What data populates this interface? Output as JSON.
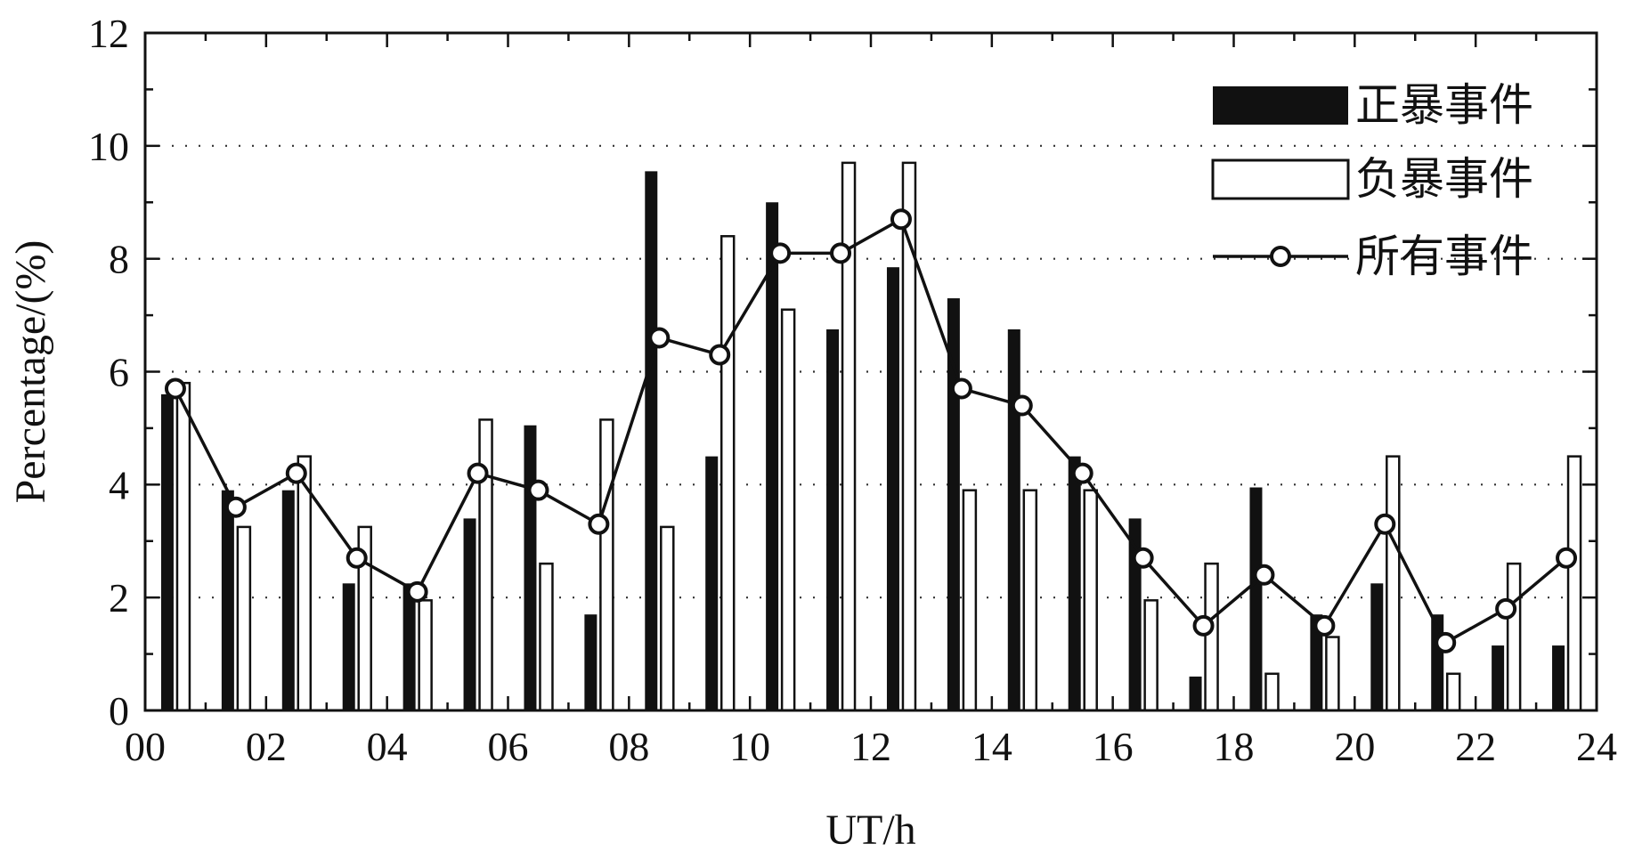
{
  "chart_data": {
    "type": "bar",
    "xlabel": "UT/h",
    "ylabel": "Percentage/(%)",
    "xlim": [
      0,
      24
    ],
    "ylim": [
      0,
      12
    ],
    "x_ticks": [
      "00",
      "02",
      "04",
      "06",
      "08",
      "10",
      "12",
      "14",
      "16",
      "18",
      "20",
      "22",
      "24"
    ],
    "y_ticks": [
      "0",
      "2",
      "4",
      "6",
      "8",
      "10",
      "12"
    ],
    "grid": "horizontal-dotted",
    "legend_position": "top-right",
    "hours": [
      0,
      1,
      2,
      3,
      4,
      5,
      6,
      7,
      8,
      9,
      10,
      11,
      12,
      13,
      14,
      15,
      16,
      17,
      18,
      19,
      20,
      21,
      22,
      23
    ],
    "series": [
      {
        "name": "正暴事件",
        "kind": "bar",
        "style": "filled",
        "values": [
          5.6,
          3.9,
          3.9,
          2.25,
          2.25,
          3.4,
          5.05,
          1.7,
          9.55,
          4.5,
          9.0,
          6.75,
          7.85,
          7.3,
          6.75,
          4.5,
          3.4,
          0.6,
          3.95,
          1.7,
          2.25,
          1.7,
          1.15,
          1.15
        ]
      },
      {
        "name": "负暴事件",
        "kind": "bar",
        "style": "hollow",
        "values": [
          5.8,
          3.25,
          4.5,
          3.25,
          1.95,
          5.15,
          2.6,
          5.15,
          3.25,
          8.4,
          7.1,
          9.7,
          9.7,
          3.9,
          3.9,
          3.9,
          1.95,
          2.6,
          0.65,
          1.3,
          4.5,
          0.65,
          2.6,
          4.5
        ]
      },
      {
        "name": "所有事件",
        "kind": "line",
        "marker": "circle",
        "values": [
          5.7,
          3.6,
          4.2,
          2.7,
          2.1,
          4.2,
          3.9,
          3.3,
          6.6,
          6.3,
          8.1,
          8.1,
          8.7,
          5.7,
          5.4,
          4.2,
          2.7,
          1.5,
          2.4,
          1.5,
          3.3,
          1.2,
          1.8,
          2.7
        ]
      }
    ]
  }
}
